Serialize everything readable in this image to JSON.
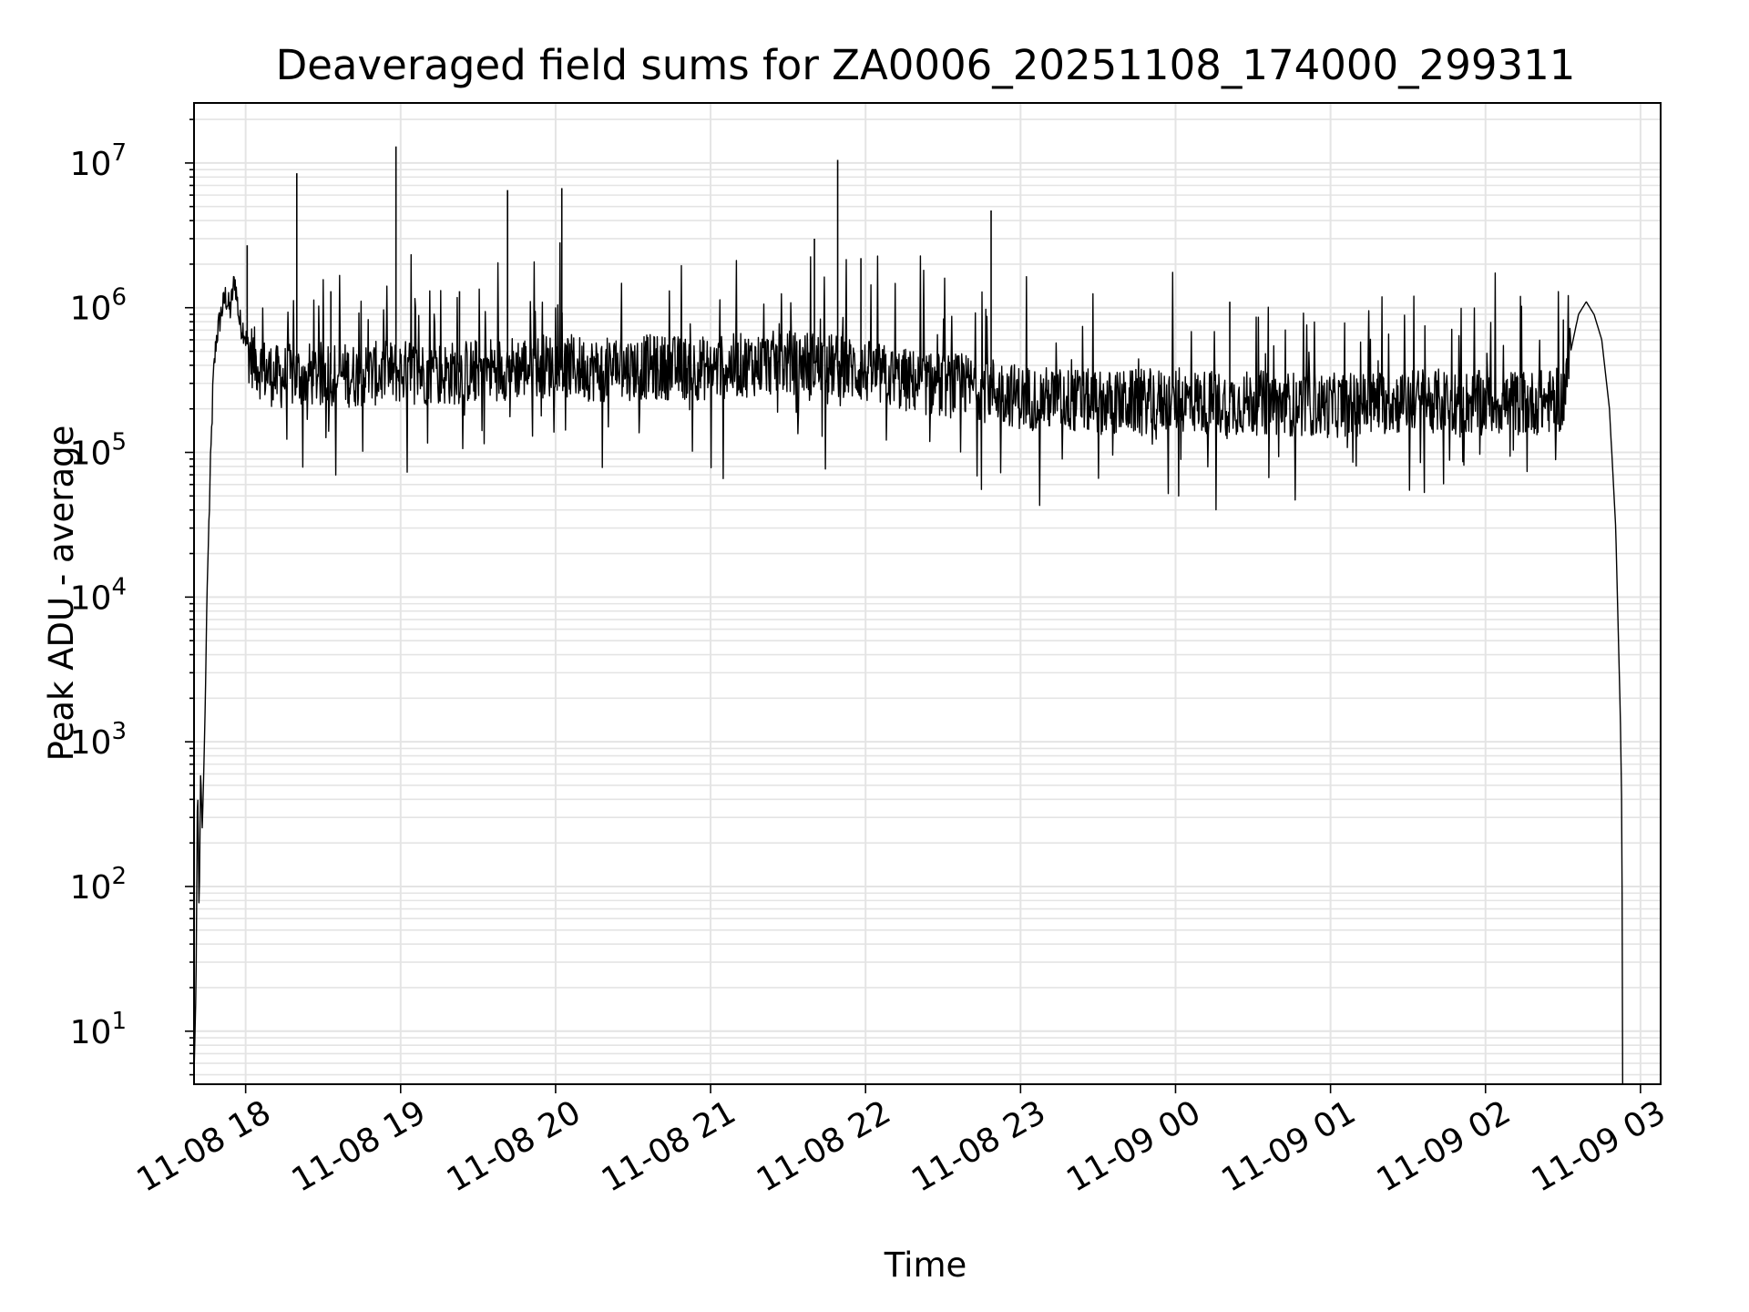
{
  "chart_data": {
    "type": "line",
    "title": "Deaveraged field sums for ZA0006_20251108_174000_299311",
    "xlabel": "Time",
    "ylabel": "Peak ADU - average",
    "yscale": "log",
    "ylim": [
      4.3,
      26000000
    ],
    "xlim_hours": [
      17.667,
      27.13
    ],
    "grid": true,
    "line_color": "#000000",
    "x_ticks": [
      {
        "hour": 18,
        "label": "11-08 18"
      },
      {
        "hour": 19,
        "label": "11-08 19"
      },
      {
        "hour": 20,
        "label": "11-08 20"
      },
      {
        "hour": 21,
        "label": "11-08 21"
      },
      {
        "hour": 22,
        "label": "11-08 22"
      },
      {
        "hour": 23,
        "label": "11-08 23"
      },
      {
        "hour": 24,
        "label": "11-09 00"
      },
      {
        "hour": 25,
        "label": "11-09 01"
      },
      {
        "hour": 26,
        "label": "11-09 02"
      },
      {
        "hour": 27,
        "label": "11-09 03"
      }
    ],
    "y_ticks": [
      {
        "exp": 1,
        "base": "10",
        "sup": "1"
      },
      {
        "exp": 2,
        "base": "10",
        "sup": "2"
      },
      {
        "exp": 3,
        "base": "10",
        "sup": "3"
      },
      {
        "exp": 4,
        "base": "10",
        "sup": "4"
      },
      {
        "exp": 5,
        "base": "10",
        "sup": "5"
      },
      {
        "exp": 6,
        "base": "10",
        "sup": "6"
      },
      {
        "exp": 7,
        "base": "10",
        "sup": "7"
      }
    ],
    "series": [
      {
        "name": "field sums",
        "points": [
          [
            17.667,
            5
          ],
          [
            17.68,
            20
          ],
          [
            17.69,
            600
          ],
          [
            17.7,
            60
          ],
          [
            17.71,
            650
          ],
          [
            17.72,
            250
          ],
          [
            17.73,
            650
          ],
          [
            17.74,
            2000
          ],
          [
            17.75,
            10000
          ],
          [
            17.77,
            60000
          ],
          [
            17.79,
            300000
          ],
          [
            17.81,
            600000
          ],
          [
            17.84,
            900000
          ],
          [
            17.87,
            1200000
          ],
          [
            17.9,
            950000
          ],
          [
            17.93,
            1600000
          ],
          [
            17.96,
            800000
          ],
          [
            17.99,
            700000
          ],
          [
            18.02,
            500000
          ],
          [
            18.1,
            380000
          ],
          [
            18.2,
            330000
          ],
          [
            18.35,
            340000
          ],
          [
            18.5,
            350000
          ],
          [
            18.7,
            340000
          ],
          [
            19.0,
            360000
          ],
          [
            19.3,
            350000
          ],
          [
            19.6,
            380000
          ],
          [
            20.0,
            400000
          ],
          [
            20.3,
            370000
          ],
          [
            20.6,
            390000
          ],
          [
            21.0,
            380000
          ],
          [
            21.3,
            410000
          ],
          [
            21.6,
            420000
          ],
          [
            21.9,
            380000
          ],
          [
            22.2,
            320000
          ],
          [
            22.5,
            290000
          ],
          [
            22.8,
            280000
          ],
          [
            23.0,
            240000
          ],
          [
            23.3,
            230000
          ],
          [
            23.6,
            220000
          ],
          [
            24.0,
            230000
          ],
          [
            24.3,
            220000
          ],
          [
            24.6,
            220000
          ],
          [
            25.0,
            210000
          ],
          [
            25.3,
            220000
          ],
          [
            25.6,
            230000
          ],
          [
            25.9,
            220000
          ],
          [
            26.3,
            220000
          ],
          [
            26.5,
            230000
          ],
          [
            26.55,
            500000
          ],
          [
            26.6,
            900000
          ],
          [
            26.65,
            1100000
          ],
          [
            26.7,
            900000
          ],
          [
            26.75,
            600000
          ],
          [
            26.8,
            200000
          ],
          [
            26.84,
            30000
          ],
          [
            26.87,
            1500
          ],
          [
            26.88,
            300
          ],
          [
            26.885,
            4.3
          ]
        ]
      }
    ],
    "spikes": [
      {
        "hour": 18.33,
        "value": 8500000
      },
      {
        "hour": 18.97,
        "value": 13000000
      },
      {
        "hour": 19.69,
        "value": 6500000
      },
      {
        "hour": 20.04,
        "value": 6700000
      },
      {
        "hour": 21.82,
        "value": 10500000
      },
      {
        "hour": 21.67,
        "value": 3000000
      },
      {
        "hour": 21.97,
        "value": 2200000
      },
      {
        "hour": 22.81,
        "value": 4700000
      },
      {
        "hour": 18.01,
        "value": 2700000
      },
      {
        "hour": 24.35,
        "value": 1100000
      },
      {
        "hour": 18.55,
        "value": 1300000
      },
      {
        "hour": 19.38,
        "value": 1300000
      }
    ]
  }
}
